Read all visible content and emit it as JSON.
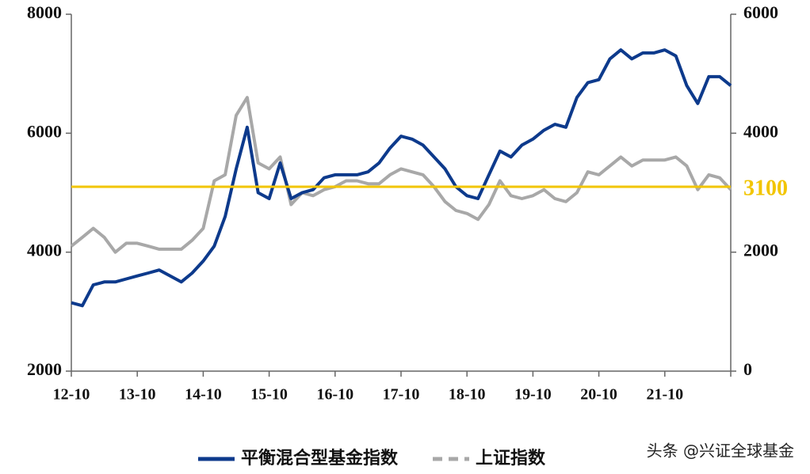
{
  "chart_data": {
    "type": "line",
    "categories": [
      "12-10",
      null,
      null,
      null,
      null,
      null,
      "13-10",
      null,
      null,
      null,
      null,
      null,
      "14-10",
      null,
      null,
      null,
      null,
      null,
      "15-10",
      null,
      null,
      null,
      null,
      null,
      "16-10",
      null,
      null,
      null,
      null,
      null,
      "17-10",
      null,
      null,
      null,
      null,
      null,
      "18-10",
      null,
      null,
      null,
      null,
      null,
      "19-10",
      null,
      null,
      null,
      null,
      null,
      "20-10",
      null,
      null,
      null,
      null,
      null,
      "21-10",
      null,
      null,
      null,
      null,
      null,
      null
    ],
    "series": [
      {
        "name": "平衡混合型基金指数",
        "color": "#0d3a8c",
        "axis": "y",
        "values": [
          3150,
          3100,
          3450,
          3500,
          3500,
          3550,
          3600,
          3650,
          3700,
          3600,
          3500,
          3650,
          3850,
          4100,
          4600,
          5400,
          6100,
          5000,
          4900,
          5500,
          4900,
          5000,
          5050,
          5250,
          5300,
          5300,
          5300,
          5350,
          5500,
          5750,
          5950,
          5900,
          5800,
          5600,
          5400,
          5100,
          4950,
          4900,
          5300,
          5700,
          5600,
          5800,
          5900,
          6050,
          6150,
          6100,
          6600,
          6850,
          6900,
          7250,
          7400,
          7250,
          7350,
          7350,
          7400,
          7300,
          6800,
          6500,
          6950,
          6950,
          6800
        ]
      },
      {
        "name": "上证指数",
        "color": "#a8a8a8",
        "axis": "y2",
        "dashed": true,
        "values": [
          2100,
          2250,
          2400,
          2250,
          2000,
          2150,
          2150,
          2100,
          2050,
          2050,
          2050,
          2200,
          2400,
          3200,
          3300,
          4300,
          4600,
          3500,
          3400,
          3600,
          2800,
          3000,
          2950,
          3050,
          3100,
          3200,
          3200,
          3150,
          3150,
          3300,
          3400,
          3350,
          3300,
          3100,
          2850,
          2700,
          2650,
          2550,
          2800,
          3200,
          2950,
          2900,
          2950,
          3050,
          2900,
          2850,
          3000,
          3350,
          3300,
          3450,
          3600,
          3450,
          3550,
          3550,
          3550,
          3600,
          3450,
          3050,
          3300,
          3250,
          3050
        ]
      }
    ],
    "ylim": [
      2000,
      8000
    ],
    "yticks": [
      2000,
      4000,
      6000,
      8000
    ],
    "y2lim": [
      0,
      6000
    ],
    "y2ticks": [
      0,
      2000,
      4000,
      6000
    ],
    "reference_line": {
      "value": 3100,
      "axis": "y2",
      "color": "#f2c500"
    },
    "legend": "bottom",
    "watermark": "头条 @兴证全球基金"
  }
}
